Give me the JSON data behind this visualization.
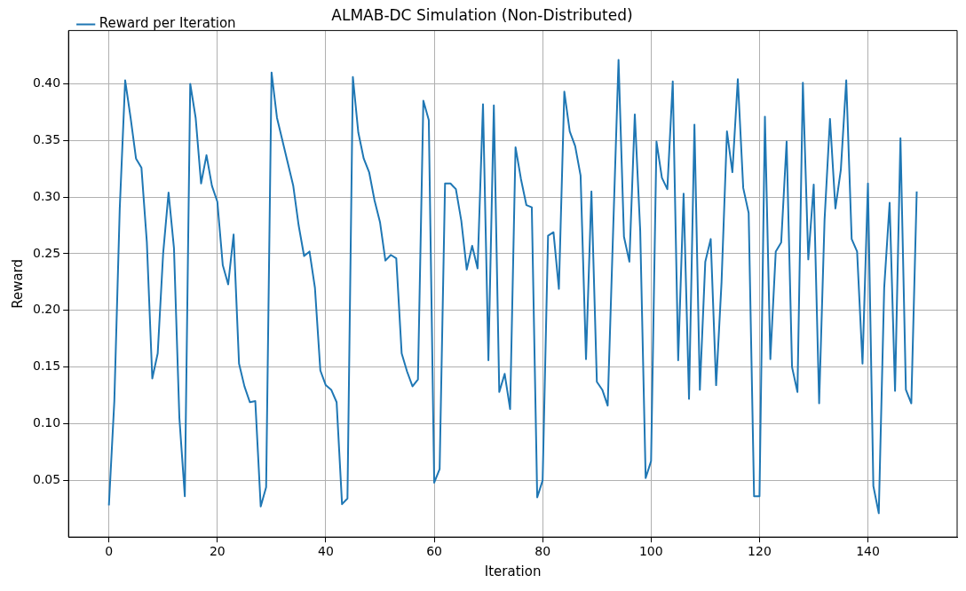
{
  "chart_data": {
    "type": "line",
    "title": "ALMAB-DC Simulation (Non-Distributed)",
    "xlabel": "Iteration",
    "ylabel": "Reward",
    "x": [
      0,
      1,
      2,
      3,
      4,
      5,
      6,
      7,
      8,
      9,
      10,
      11,
      12,
      13,
      14,
      15,
      16,
      17,
      18,
      19,
      20,
      21,
      22,
      23,
      24,
      25,
      26,
      27,
      28,
      29,
      30,
      31,
      32,
      33,
      34,
      35,
      36,
      37,
      38,
      39,
      40,
      41,
      42,
      43,
      44,
      45,
      46,
      47,
      48,
      49,
      50,
      51,
      52,
      53,
      54,
      55,
      56,
      57,
      58,
      59,
      60,
      61,
      62,
      63,
      64,
      65,
      66,
      67,
      68,
      69,
      70,
      71,
      72,
      73,
      74,
      75,
      76,
      77,
      78,
      79,
      80,
      81,
      82,
      83,
      84,
      85,
      86,
      87,
      88,
      89,
      90,
      91,
      92,
      93,
      94,
      95,
      96,
      97,
      98,
      99,
      100,
      101,
      102,
      103,
      104,
      105,
      106,
      107,
      108,
      109,
      110,
      111,
      112,
      113,
      114,
      115,
      116,
      117,
      118,
      119,
      120,
      121,
      122,
      123,
      124,
      125,
      126,
      127,
      128,
      129,
      130,
      131,
      132,
      133,
      134,
      135,
      136,
      137,
      138,
      139,
      140,
      141,
      142,
      143,
      144,
      145,
      146,
      147,
      148,
      149
    ],
    "series": [
      {
        "name": "Reward per Iteration",
        "color": "#1f77b4",
        "values": [
          0.028,
          0.12,
          0.29,
          0.403,
          0.37,
          0.334,
          0.326,
          0.26,
          0.14,
          0.162,
          0.25,
          0.304,
          0.255,
          0.105,
          0.036,
          0.4,
          0.37,
          0.312,
          0.337,
          0.31,
          0.296,
          0.24,
          0.223,
          0.267,
          0.153,
          0.133,
          0.119,
          0.12,
          0.027,
          0.044,
          0.41,
          0.37,
          0.35,
          0.33,
          0.31,
          0.275,
          0.248,
          0.252,
          0.22,
          0.147,
          0.134,
          0.13,
          0.119,
          0.029,
          0.034,
          0.406,
          0.357,
          0.334,
          0.322,
          0.297,
          0.278,
          0.244,
          0.249,
          0.246,
          0.162,
          0.146,
          0.133,
          0.139,
          0.385,
          0.368,
          0.048,
          0.06,
          0.312,
          0.312,
          0.307,
          0.279,
          0.236,
          0.257,
          0.237,
          0.382,
          0.156,
          0.381,
          0.128,
          0.144,
          0.113,
          0.344,
          0.316,
          0.293,
          0.291,
          0.035,
          0.05,
          0.266,
          0.269,
          0.219,
          0.393,
          0.358,
          0.345,
          0.319,
          0.157,
          0.305,
          0.137,
          0.13,
          0.116,
          0.27,
          0.421,
          0.265,
          0.243,
          0.373,
          0.27,
          0.052,
          0.067,
          0.349,
          0.317,
          0.307,
          0.402,
          0.156,
          0.303,
          0.122,
          0.364,
          0.13,
          0.243,
          0.263,
          0.134,
          0.225,
          0.358,
          0.322,
          0.404,
          0.308,
          0.286,
          0.036,
          0.036,
          0.371,
          0.157,
          0.252,
          0.26,
          0.349,
          0.15,
          0.128,
          0.401,
          0.245,
          0.311,
          0.118,
          0.28,
          0.369,
          0.29,
          0.324,
          0.403,
          0.263,
          0.252,
          0.153,
          0.312,
          0.045,
          0.021,
          0.22,
          0.295,
          0.129,
          0.352,
          0.13,
          0.118,
          0.305
        ]
      }
    ],
    "xlim": [
      -7.45,
      156.45
    ],
    "xticks": [
      0,
      20,
      40,
      60,
      80,
      100,
      120,
      140
    ],
    "ylim": [
      0.0,
      0.447
    ],
    "yticks": [
      {
        "value": 0.05,
        "label": "0.05"
      },
      {
        "value": 0.1,
        "label": "0.10"
      },
      {
        "value": 0.15,
        "label": "0.15"
      },
      {
        "value": 0.2,
        "label": "0.20"
      },
      {
        "value": 0.25,
        "label": "0.25"
      },
      {
        "value": 0.3,
        "label": "0.30"
      },
      {
        "value": 0.35,
        "label": "0.35"
      },
      {
        "value": 0.4,
        "label": "0.40"
      }
    ],
    "grid": true,
    "legend": "top left",
    "marker": "none",
    "line_style": "solid"
  }
}
